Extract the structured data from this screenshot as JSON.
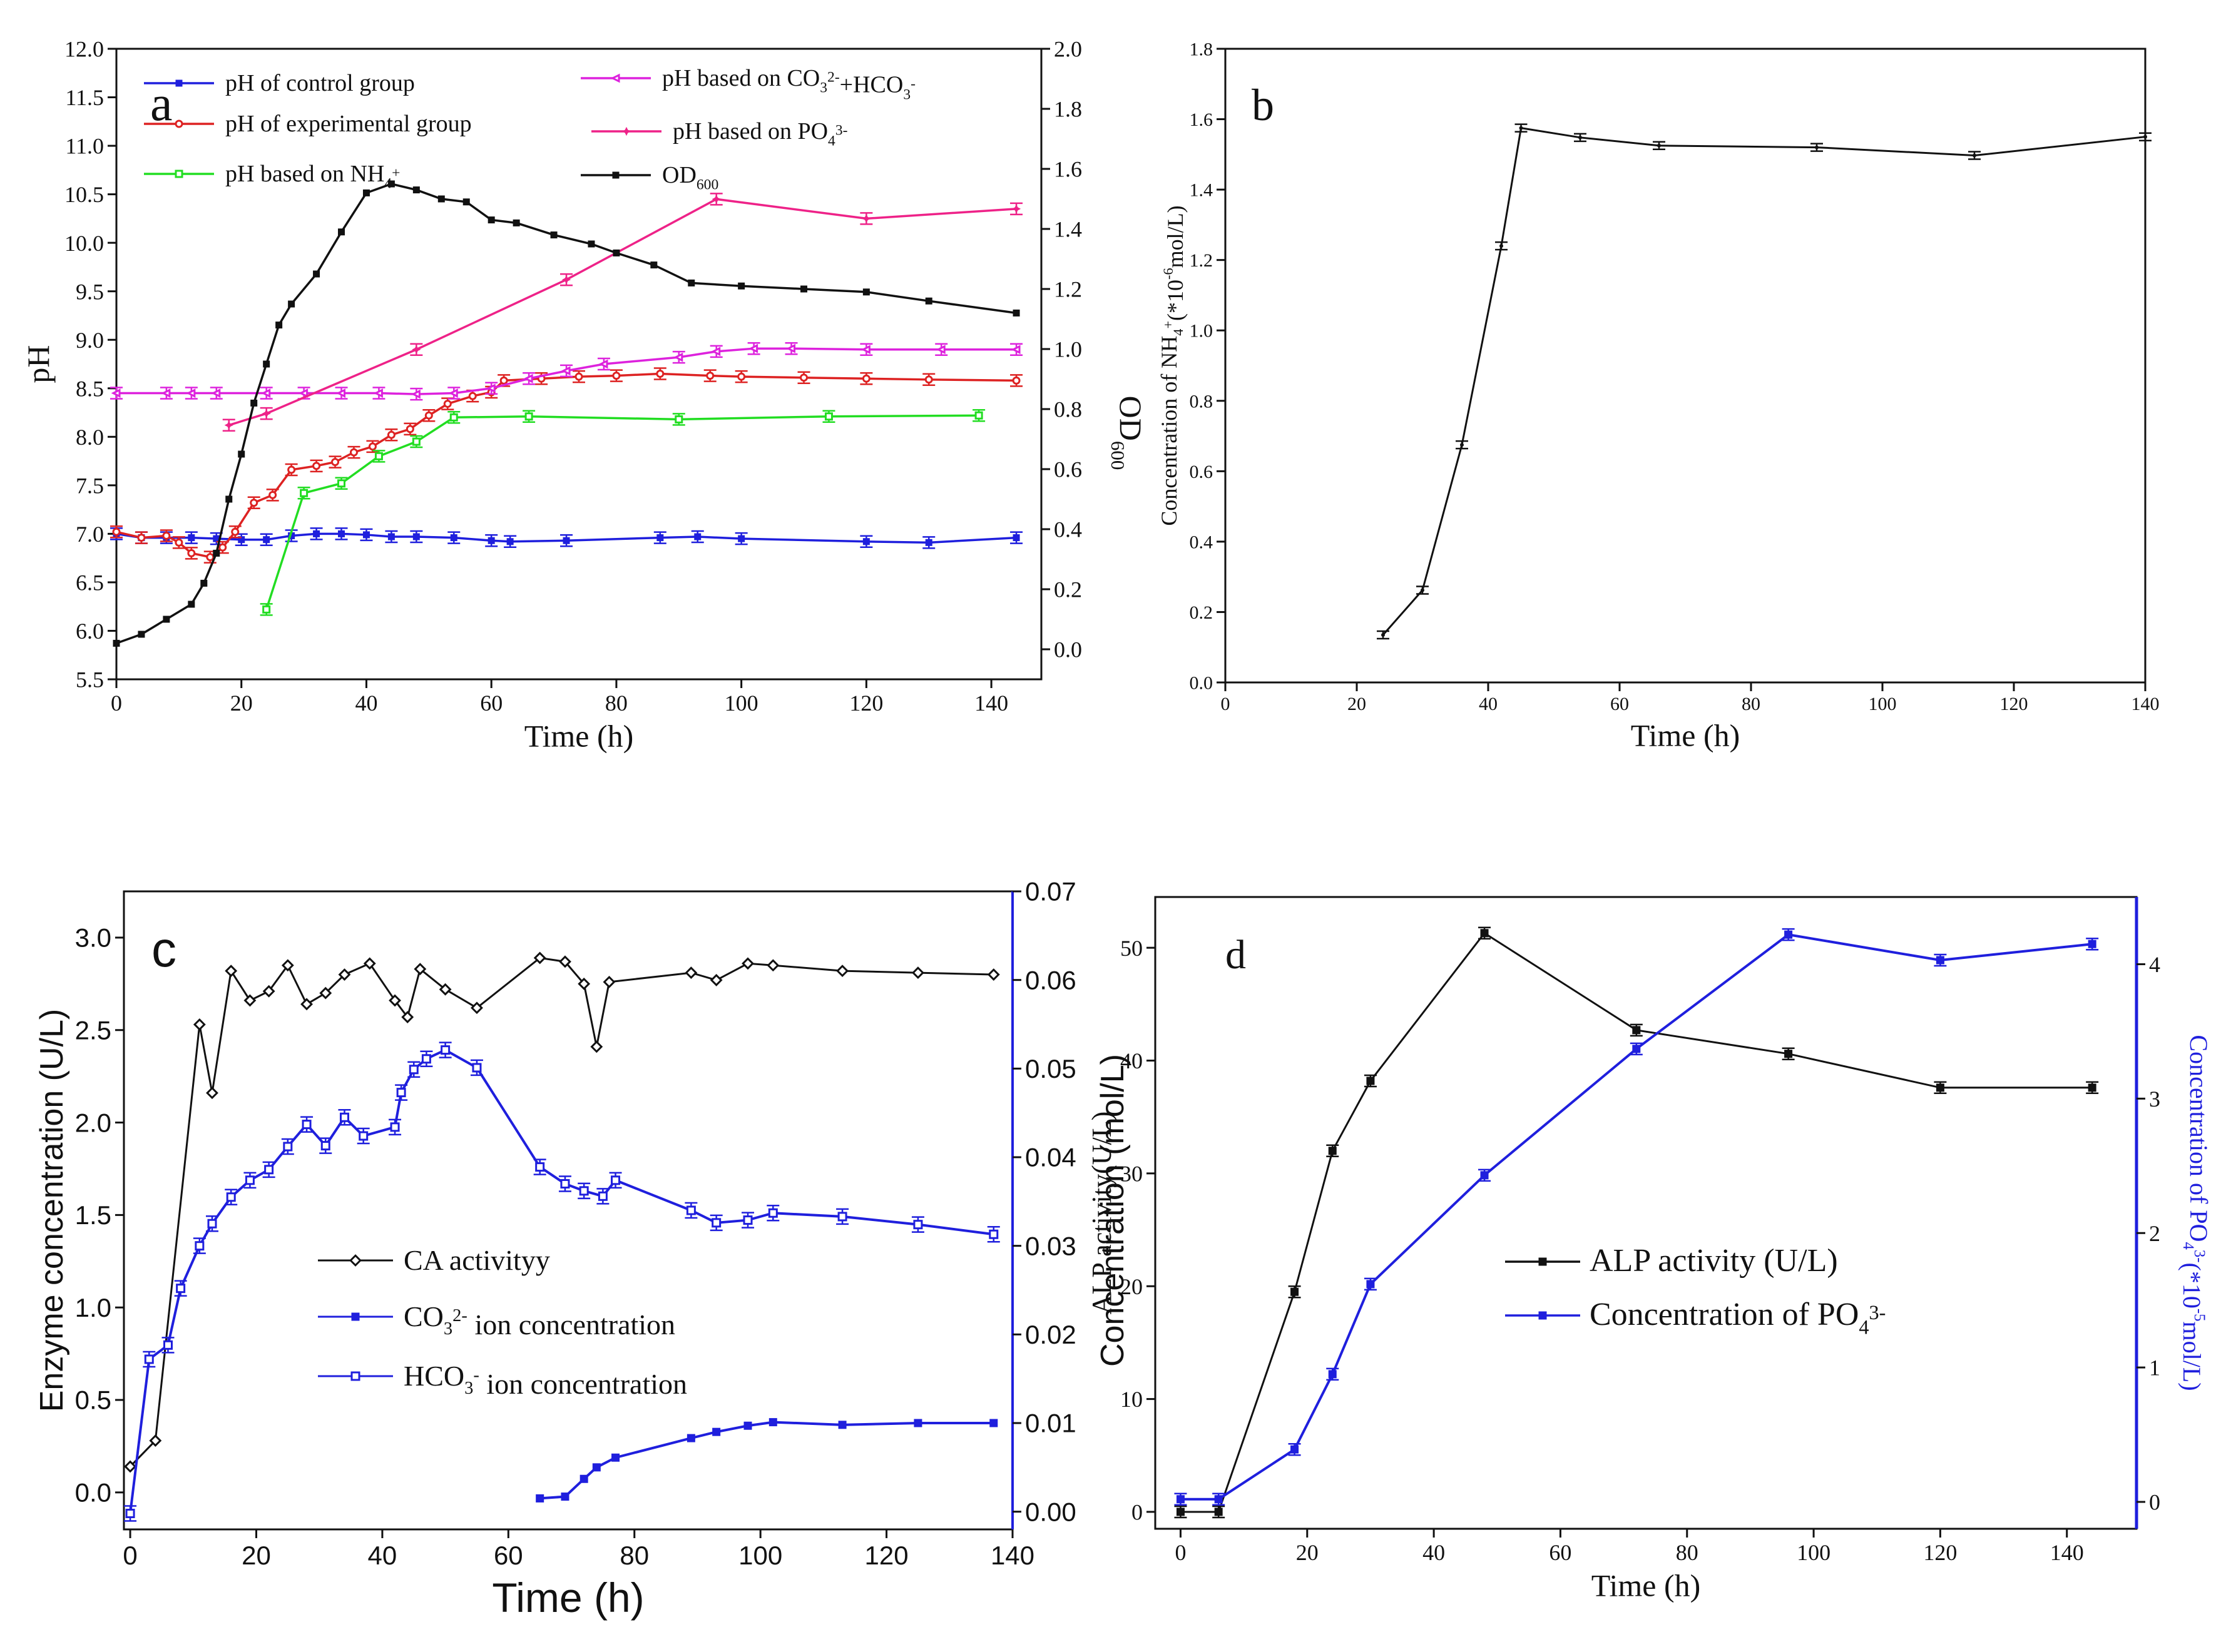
{
  "chart_data": [
    {
      "id": "a",
      "type": "line",
      "panel_label": "a",
      "xlabel": "Time (h)",
      "ylabel": "pH",
      "y2label": "OD",
      "y2label_sub": "600",
      "xlim": [
        0,
        148
      ],
      "ylim": [
        5.5,
        12.0
      ],
      "y2lim": [
        -0.1,
        2.0
      ],
      "xticks": [
        "0",
        "20",
        "40",
        "60",
        "80",
        "100",
        "120",
        "140"
      ],
      "yticks": [
        "5.5",
        "6.0",
        "6.5",
        "7.0",
        "7.5",
        "8.0",
        "8.5",
        "9.0",
        "9.5",
        "10.0",
        "10.5",
        "11.0",
        "11.5",
        "12.0"
      ],
      "y2ticks": [
        "0.0",
        "0.2",
        "0.4",
        "0.6",
        "0.8",
        "1.0",
        "1.2",
        "1.4",
        "1.6",
        "1.8",
        "2.0"
      ],
      "legend_position": "top",
      "series": [
        {
          "name": "pH of control group",
          "color": "#1f1fdd",
          "axis": "left",
          "marker": "square-filled",
          "x": [
            0,
            4,
            8,
            12,
            16,
            20,
            24,
            28,
            32,
            36,
            40,
            44,
            48,
            54,
            60,
            63,
            72,
            87,
            93,
            100,
            120,
            130,
            144
          ],
          "y": [
            7.0,
            6.96,
            6.96,
            6.96,
            6.95,
            6.94,
            6.94,
            6.98,
            7.0,
            7.0,
            6.99,
            6.97,
            6.97,
            6.96,
            6.93,
            6.92,
            6.93,
            6.96,
            6.97,
            6.95,
            6.92,
            6.91,
            6.96
          ]
        },
        {
          "name": "pH of experimental group",
          "color": "#dd2222",
          "axis": "left",
          "marker": "circle-open",
          "x": [
            0,
            4,
            8,
            10,
            12,
            15,
            17,
            19,
            22,
            25,
            28,
            32,
            35,
            38,
            41,
            44,
            47,
            50,
            53,
            57,
            60,
            62,
            68,
            74,
            80,
            87,
            95,
            100,
            110,
            120,
            130,
            144
          ],
          "y": [
            7.02,
            6.96,
            6.98,
            6.91,
            6.8,
            6.76,
            6.86,
            7.02,
            7.32,
            7.4,
            7.66,
            7.7,
            7.74,
            7.84,
            7.9,
            8.02,
            8.08,
            8.22,
            8.34,
            8.42,
            8.46,
            8.58,
            8.6,
            8.62,
            8.63,
            8.65,
            8.63,
            8.62,
            8.61,
            8.6,
            8.59,
            8.58
          ]
        },
        {
          "name": "pH based on NH4+",
          "label_main": "pH based on NH",
          "label_sub": "4",
          "label_sup": "+",
          "color": "#22dd22",
          "axis": "left",
          "marker": "square-open",
          "x": [
            24,
            30,
            36,
            42,
            48,
            54,
            66,
            90,
            114,
            138
          ],
          "y": [
            6.22,
            7.42,
            7.52,
            7.8,
            7.95,
            8.2,
            8.21,
            8.18,
            8.21,
            8.22
          ]
        },
        {
          "name": "pH based on CO3 2- + HCO3 -",
          "label_main": "pH based on CO",
          "label_sub": "3",
          "label_sup": "2-",
          "label_mid": "+HCO",
          "label_sub2": "3",
          "label_sup2": "-",
          "color": "#dd22dd",
          "axis": "left",
          "marker": "triangle-left",
          "x": [
            0,
            8,
            12,
            16,
            24,
            30,
            36,
            42,
            48,
            54,
            60,
            66,
            72,
            78,
            90,
            96,
            102,
            108,
            120,
            132,
            144
          ],
          "y": [
            8.45,
            8.45,
            8.45,
            8.45,
            8.45,
            8.45,
            8.45,
            8.45,
            8.44,
            8.45,
            8.5,
            8.6,
            8.68,
            8.75,
            8.82,
            8.88,
            8.91,
            8.91,
            8.9,
            8.9,
            8.9
          ]
        },
        {
          "name": "pH based on PO4 3-",
          "label_main": "pH based on PO",
          "label_sub": "4",
          "label_sup": "3-",
          "color": "#ee2288",
          "axis": "left",
          "marker": "star",
          "x": [
            18,
            24,
            48,
            72,
            96,
            120,
            144
          ],
          "y": [
            8.12,
            8.24,
            8.9,
            9.62,
            10.45,
            10.25,
            10.35
          ]
        },
        {
          "name": "OD600",
          "label_main": "OD",
          "label_sub": "600",
          "color": "#111111",
          "axis": "right",
          "marker": "square-filled",
          "x": [
            0,
            4,
            8,
            12,
            14,
            16,
            18,
            20,
            22,
            24,
            26,
            28,
            32,
            36,
            40,
            44,
            48,
            52,
            56,
            60,
            64,
            70,
            76,
            80,
            86,
            92,
            100,
            110,
            120,
            130,
            144
          ],
          "y": [
            0.02,
            0.05,
            0.1,
            0.15,
            0.22,
            0.32,
            0.5,
            0.65,
            0.82,
            0.95,
            1.08,
            1.15,
            1.25,
            1.39,
            1.52,
            1.55,
            1.53,
            1.5,
            1.49,
            1.43,
            1.42,
            1.38,
            1.35,
            1.32,
            1.28,
            1.22,
            1.21,
            1.2,
            1.19,
            1.16,
            1.12
          ]
        }
      ]
    },
    {
      "id": "b",
      "type": "line",
      "panel_label": "b",
      "xlabel": "Time (h)",
      "ylabel_parts": [
        "Concentration of NH",
        "4",
        "+",
        "(*10",
        "-6",
        "mol/L)"
      ],
      "xlim": [
        0,
        140
      ],
      "ylim": [
        0,
        1.8
      ],
      "xticks": [
        "0",
        "20",
        "40",
        "60",
        "80",
        "100",
        "120",
        "140"
      ],
      "yticks": [
        "0.0",
        "0.2",
        "0.4",
        "0.6",
        "0.8",
        "1.0",
        "1.2",
        "1.4",
        "1.6",
        "1.8"
      ],
      "series": [
        {
          "name": "NH4+ concentration",
          "color": "#111111",
          "x": [
            24,
            30,
            36,
            42,
            45,
            54,
            66,
            90,
            114,
            140
          ],
          "y": [
            0.135,
            0.262,
            0.675,
            1.24,
            1.575,
            1.548,
            1.525,
            1.52,
            1.497,
            1.55
          ]
        }
      ]
    },
    {
      "id": "c",
      "type": "line",
      "panel_label": "c",
      "xlabel": "Time (h)",
      "ylabel": "Enzyme concentration  (U/L)",
      "y2label": "Concentration (mol/L)",
      "xlim": [
        -1,
        140
      ],
      "ylim": [
        -0.2,
        3.25
      ],
      "y2lim": [
        -0.002,
        0.07
      ],
      "xticks": [
        "0",
        "20",
        "40",
        "60",
        "80",
        "100",
        "120",
        "140"
      ],
      "yticks": [
        "0.0",
        "0.5",
        "1.0",
        "1.5",
        "2.0",
        "2.5",
        "3.0"
      ],
      "y2ticks": [
        "0.00",
        "0.01",
        "0.02",
        "0.03",
        "0.04",
        "0.05",
        "0.06",
        "0.07"
      ],
      "legend_position": "center-left",
      "series": [
        {
          "name": "CA activityy",
          "label_main": "CA activityy",
          "color": "#111111",
          "axis": "left",
          "marker": "diamond-open",
          "x": [
            0,
            4,
            11,
            13,
            16,
            19,
            22,
            25,
            28,
            31,
            34,
            38,
            42,
            44,
            46,
            50,
            55,
            65,
            69,
            72,
            74,
            76,
            89,
            93,
            98,
            102,
            113,
            125,
            137
          ],
          "y": [
            0.14,
            0.28,
            2.53,
            2.16,
            2.82,
            2.66,
            2.71,
            2.85,
            2.64,
            2.7,
            2.8,
            2.86,
            2.66,
            2.57,
            2.83,
            2.72,
            2.62,
            2.89,
            2.87,
            2.75,
            2.41,
            2.76,
            2.81,
            2.77,
            2.86,
            2.85,
            2.82,
            2.81,
            2.8
          ]
        },
        {
          "name": "CO3 2- ion concentration",
          "label_main": "CO",
          "label_sub": "3",
          "label_sup": "2-",
          "label_tail": " ion concentration",
          "color": "#1f1fdd",
          "axis": "right",
          "marker": "square-filled",
          "x": [
            65,
            69,
            72,
            74,
            77,
            89,
            93,
            98,
            102,
            113,
            125,
            137
          ],
          "y": [
            0.0015,
            0.0017,
            0.0037,
            0.005,
            0.0061,
            0.0083,
            0.009,
            0.0097,
            0.0101,
            0.0098,
            0.01,
            0.01
          ]
        },
        {
          "name": "HCO3 - ion concentration",
          "label_main": "HCO",
          "label_sub": "3",
          "label_sup": "-",
          "label_tail": " ion concentration",
          "color": "#1f1fdd",
          "axis": "right",
          "marker": "square-open",
          "x": [
            0,
            3,
            6,
            8,
            11,
            13,
            16,
            19,
            22,
            25,
            28,
            31,
            34,
            37,
            42,
            43,
            45,
            47,
            50,
            55,
            65,
            69,
            72,
            75,
            77,
            89,
            93,
            98,
            102,
            113,
            125,
            137
          ],
          "y": [
            -0.0002,
            0.0172,
            0.0188,
            0.0252,
            0.03,
            0.0325,
            0.0355,
            0.0374,
            0.0386,
            0.0412,
            0.0437,
            0.0413,
            0.0445,
            0.0424,
            0.0434,
            0.0473,
            0.0499,
            0.0511,
            0.0521,
            0.0501,
            0.0389,
            0.037,
            0.0362,
            0.0356,
            0.0374,
            0.034,
            0.0326,
            0.0329,
            0.0337,
            0.0333,
            0.0324,
            0.0313
          ]
        }
      ]
    },
    {
      "id": "d",
      "type": "line",
      "panel_label": "d",
      "xlabel": "Time (h)",
      "ylabel_parts": [
        "ALP activity",
        "",
        "(U/L)"
      ],
      "y2label_parts": [
        "Concentration of PO",
        "4",
        "3-",
        "(*10",
        "-5",
        "mol/L)"
      ],
      "xlim": [
        -4,
        151
      ],
      "ylim": [
        -1.5,
        54.5
      ],
      "y2lim": [
        -0.2,
        4.5
      ],
      "xticks": [
        "0",
        "20",
        "40",
        "60",
        "80",
        "100",
        "120",
        "140"
      ],
      "yticks": [
        "0",
        "10",
        "20",
        "30",
        "40",
        "50"
      ],
      "y2ticks": [
        "0",
        "1",
        "2",
        "3",
        "4"
      ],
      "legend_position": "center-right",
      "series": [
        {
          "name": "ALP activity (U/L)",
          "label_main": "ALP activity (U/L)",
          "color": "#111111",
          "axis": "left",
          "marker": "square-filled",
          "x": [
            0,
            6,
            18,
            24,
            30,
            48,
            72,
            96,
            120,
            144
          ],
          "y": [
            0.0,
            0.0,
            19.5,
            32.0,
            38.2,
            51.3,
            42.7,
            40.6,
            37.6,
            37.6
          ]
        },
        {
          "name": "Concentration of PO4 3-",
          "label_main": "Concentration of PO",
          "label_sub": "4",
          "label_sup": "3-",
          "color": "#1f1fdd",
          "axis": "right",
          "marker": "square-filled",
          "x": [
            0,
            6,
            18,
            24,
            30,
            48,
            72,
            96,
            120,
            144
          ],
          "y": [
            0.02,
            0.02,
            0.39,
            0.95,
            1.62,
            2.43,
            3.37,
            4.22,
            4.03,
            4.15
          ]
        }
      ]
    }
  ]
}
